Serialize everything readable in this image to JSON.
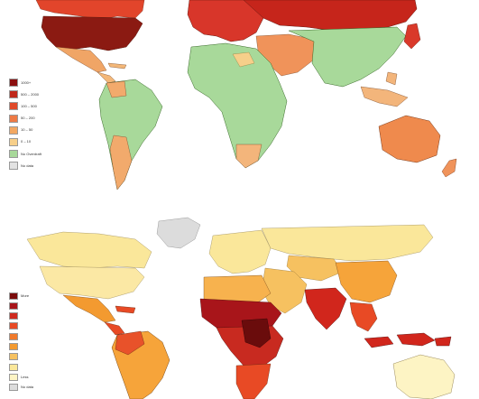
{
  "top_map": {
    "legend": [
      {
        "label": "1000+",
        "color": "#8b0f0f"
      },
      {
        "label": "500 – 2000",
        "color": "#c0281a"
      },
      {
        "label": "100 – 500",
        "color": "#e04a2a"
      },
      {
        "label": "50 – 200",
        "color": "#ee7a45"
      },
      {
        "label": "10 – 50",
        "color": "#f3a862"
      },
      {
        "label": "0 – 10",
        "color": "#f7cf8a"
      },
      {
        "label": "No Overdraft",
        "color": "#a8d99a"
      },
      {
        "label": "No data",
        "color": "#e2e2e2"
      }
    ],
    "colors": {
      "north_america": "#8b1a12",
      "canada": "#e2452b",
      "mexico": "#f0a566",
      "central_america": "#f3b778",
      "south_america": "#a8d99a",
      "brazil_south": "#f2aa6c",
      "europe": "#d8362a",
      "russia": "#c6251b",
      "north_africa": "#a8d99a",
      "africa": "#a8d99a",
      "south_africa": "#f3b57b",
      "middle_east": "#f0935a",
      "asia": "#a8d99a",
      "china": "#a8d99a",
      "japan": "#d9392a",
      "australia": "#ef8a4d",
      "nz": "#f0935a",
      "se_asia": "#f3b57b",
      "sahara_strip": "#f7cf8a"
    }
  },
  "bottom_map": {
    "legend": [
      {
        "label": "More",
        "color": "#7a0c0c"
      },
      {
        "label": "",
        "color": "#a8151a"
      },
      {
        "label": "",
        "color": "#cf2a1f"
      },
      {
        "label": "",
        "color": "#e84a25"
      },
      {
        "label": "",
        "color": "#f07a2b"
      },
      {
        "label": "",
        "color": "#f39a30"
      },
      {
        "label": "",
        "color": "#f6c160"
      },
      {
        "label": "",
        "color": "#fae79a"
      },
      {
        "label": "Less",
        "color": "#fdf4c4"
      },
      {
        "label": "No data",
        "color": "#dcdcdc"
      }
    ],
    "colors": {
      "greenland": "#dcdcdc",
      "canada": "#fae79a",
      "usa": "#fbe8a4",
      "mexico": "#f39a30",
      "central_america": "#e84a25",
      "south_america": "#f6a43a",
      "south_america_north": "#e8522a",
      "europe": "#fae79a",
      "russia": "#fae79a",
      "north_africa": "#f7b24e",
      "sahel": "#a8151a",
      "central_africa": "#c82a20",
      "east_africa_dark": "#6a0c0c",
      "southern_africa": "#e84a25",
      "middle_east": "#f6c160",
      "india": "#d1261c",
      "china": "#f6a43a",
      "se_asia": "#e84a25",
      "indonesia": "#d1261c",
      "australia": "#fdf4c4",
      "central_asia": "#f6c160"
    }
  }
}
